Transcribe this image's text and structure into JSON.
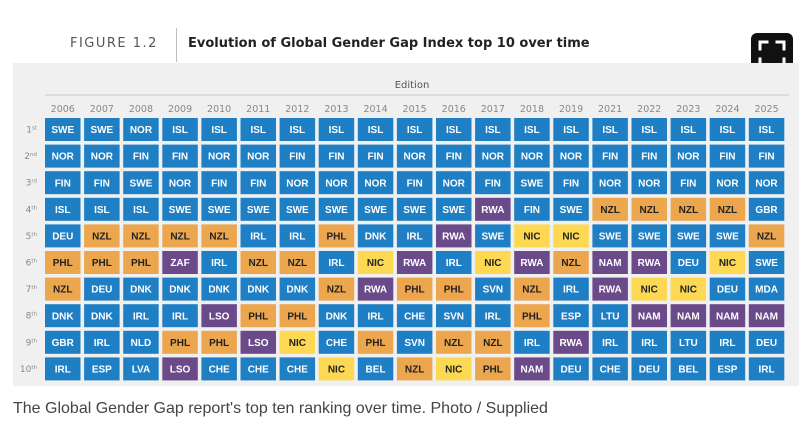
{
  "figure": {
    "label": "FIGURE 1.2",
    "title": "Evolution of Global Gender Gap Index top 10 over time"
  },
  "caption": "The Global Gender Gap report's top ten ranking over time. Photo / Supplied",
  "expand_button": {
    "icon": "expand-icon"
  },
  "colors": {
    "default": "#1f7fc4",
    "orange": "#eca64e",
    "yellow": "#fdd852",
    "purple": "#6b4a8a",
    "panel": "#f0f0f0"
  },
  "chart_data": {
    "type": "table",
    "xlabel": "Edition",
    "years": [
      "2006",
      "2007",
      "2008",
      "2009",
      "2010",
      "2011",
      "2012",
      "2013",
      "2014",
      "2015",
      "2016",
      "2017",
      "2018",
      "2019",
      "2021",
      "2022",
      "2023",
      "2024",
      "2025"
    ],
    "ranks": [
      {
        "num": "1",
        "suffix": "st"
      },
      {
        "num": "2",
        "suffix": "nd"
      },
      {
        "num": "3",
        "suffix": "rd"
      },
      {
        "num": "4",
        "suffix": "th"
      },
      {
        "num": "5",
        "suffix": "th"
      },
      {
        "num": "6",
        "suffix": "th"
      },
      {
        "num": "7",
        "suffix": "th"
      },
      {
        "num": "8",
        "suffix": "th"
      },
      {
        "num": "9",
        "suffix": "th"
      },
      {
        "num": "10",
        "suffix": "th"
      }
    ],
    "cells": [
      [
        "SWE",
        "SWE",
        "NOR",
        "ISL",
        "ISL",
        "ISL",
        "ISL",
        "ISL",
        "ISL",
        "ISL",
        "ISL",
        "ISL",
        "ISL",
        "ISL",
        "ISL",
        "ISL",
        "ISL",
        "ISL",
        "ISL"
      ],
      [
        "NOR",
        "NOR",
        "FIN",
        "FIN",
        "NOR",
        "NOR",
        "FIN",
        "FIN",
        "FIN",
        "NOR",
        "FIN",
        "NOR",
        "NOR",
        "NOR",
        "FIN",
        "FIN",
        "NOR",
        "FIN",
        "FIN"
      ],
      [
        "FIN",
        "FIN",
        "SWE",
        "NOR",
        "FIN",
        "FIN",
        "NOR",
        "NOR",
        "NOR",
        "FIN",
        "NOR",
        "FIN",
        "SWE",
        "FIN",
        "NOR",
        "NOR",
        "FIN",
        "NOR",
        "NOR"
      ],
      [
        "ISL",
        "ISL",
        "ISL",
        "SWE",
        "SWE",
        "SWE",
        "SWE",
        "SWE",
        "SWE",
        "SWE",
        "SWE",
        "RWA",
        "FIN",
        "SWE",
        "NZL",
        "NZL",
        "NZL",
        "NZL",
        "GBR"
      ],
      [
        "DEU",
        "NZL",
        "NZL",
        "NZL",
        "NZL",
        "IRL",
        "IRL",
        "PHL",
        "DNK",
        "IRL",
        "RWA",
        "SWE",
        "NIC",
        "NIC",
        "SWE",
        "SWE",
        "SWE",
        "SWE",
        "NZL"
      ],
      [
        "PHL",
        "PHL",
        "PHL",
        "ZAF",
        "IRL",
        "NZL",
        "NZL",
        "IRL",
        "NIC",
        "RWA",
        "IRL",
        "NIC",
        "RWA",
        "NZL",
        "NAM",
        "RWA",
        "DEU",
        "NIC",
        "SWE"
      ],
      [
        "NZL",
        "DEU",
        "DNK",
        "DNK",
        "DNK",
        "DNK",
        "DNK",
        "NZL",
        "RWA",
        "PHL",
        "PHL",
        "SVN",
        "NZL",
        "IRL",
        "RWA",
        "NIC",
        "NIC",
        "DEU",
        "MDA"
      ],
      [
        "DNK",
        "DNK",
        "IRL",
        "IRL",
        "LSO",
        "PHL",
        "PHL",
        "DNK",
        "IRL",
        "CHE",
        "SVN",
        "IRL",
        "PHL",
        "ESP",
        "LTU",
        "NAM",
        "NAM",
        "NAM",
        "NAM"
      ],
      [
        "GBR",
        "IRL",
        "NLD",
        "PHL",
        "PHL",
        "LSO",
        "NIC",
        "CHE",
        "PHL",
        "SVN",
        "NZL",
        "NZL",
        "IRL",
        "RWA",
        "IRL",
        "IRL",
        "LTU",
        "IRL",
        "DEU"
      ],
      [
        "IRL",
        "ESP",
        "LVA",
        "LSO",
        "CHE",
        "CHE",
        "CHE",
        "NIC",
        "BEL",
        "NZL",
        "NIC",
        "PHL",
        "NAM",
        "DEU",
        "CHE",
        "DEU",
        "BEL",
        "ESP",
        "IRL"
      ]
    ],
    "highlight_colors": {
      "NZL": "orange",
      "PHL": "orange",
      "NIC": "yellow",
      "ZAF": "purple",
      "LSO": "purple",
      "RWA": "purple",
      "NAM": "purple"
    }
  }
}
